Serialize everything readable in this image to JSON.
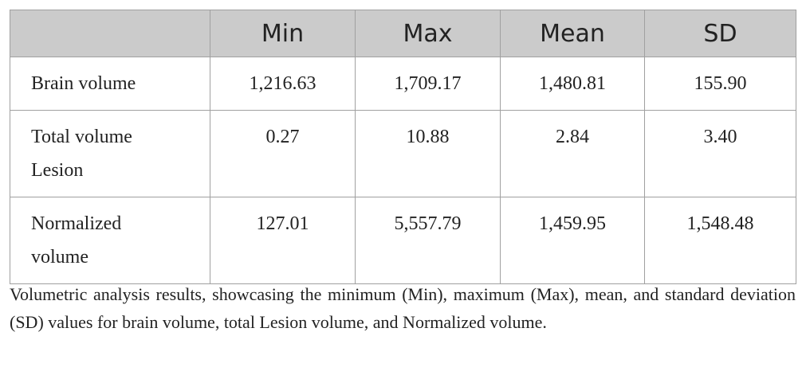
{
  "table": {
    "columns": [
      "Min",
      "Max",
      "Mean",
      "SD"
    ],
    "rows": [
      {
        "label": "Brain volume",
        "cells": [
          "1,216.63",
          "1,709.17",
          "1,480.81",
          "155.90"
        ]
      },
      {
        "label": "Total volume Lesion",
        "cells": [
          "0.27",
          "10.88",
          "2.84",
          "3.40"
        ]
      },
      {
        "label": "Normalized volume",
        "cells": [
          "127.01",
          "5,557.79",
          "1,459.95",
          "1,548.48"
        ]
      }
    ]
  },
  "caption": "Volumetric analysis results, showcasing the minimum (Min), maximum (Max), mean, and standard deviation (SD) values for brain volume, total Lesion volume, and Normalized volume."
}
